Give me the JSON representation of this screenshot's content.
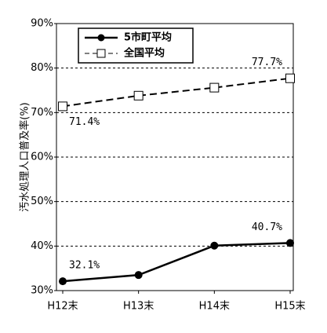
{
  "chart_data": {
    "type": "line",
    "y_label": "汚水処理人口普及率(%)",
    "categories": [
      "H12末",
      "H13末",
      "H14末",
      "H15末"
    ],
    "series": [
      {
        "name": "5市町平均",
        "color": "#000000",
        "line_style": "solid",
        "marker": "circle",
        "values": [
          32.1,
          33.5,
          40.1,
          40.7
        ],
        "value_labels": [
          "32.1%",
          null,
          null,
          "40.7%"
        ]
      },
      {
        "name": "全国平均",
        "color": "#000000",
        "line_style": "dashed",
        "marker": "square",
        "values": [
          71.4,
          73.8,
          75.6,
          77.7
        ],
        "value_labels": [
          "71.4%",
          null,
          null,
          "77.7%"
        ]
      }
    ],
    "ylim": [
      30,
      90
    ],
    "yticks": [
      {
        "value": 30,
        "label": "30%"
      },
      {
        "value": 40,
        "label": "40%"
      },
      {
        "value": 50,
        "label": "50%"
      },
      {
        "value": 60,
        "label": "60%"
      },
      {
        "value": 70,
        "label": "70%"
      },
      {
        "value": 80,
        "label": "80%"
      },
      {
        "value": 90,
        "label": "90%"
      }
    ],
    "grid": true,
    "legend": "upper left"
  }
}
